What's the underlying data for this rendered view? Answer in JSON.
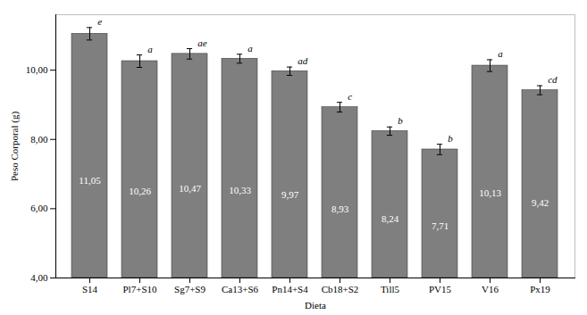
{
  "chart_data": {
    "type": "bar",
    "categories": [
      "S14",
      "Pl7+S10",
      "Sg7+S9",
      "Ca13+S6",
      "Pn14+S4",
      "Cb18+S2",
      "Till5",
      "PV15",
      "V16",
      "Px19"
    ],
    "values": [
      11.05,
      10.26,
      10.47,
      10.33,
      9.97,
      8.93,
      8.24,
      7.71,
      10.13,
      9.42
    ],
    "errors": [
      0.18,
      0.18,
      0.15,
      0.13,
      0.12,
      0.14,
      0.12,
      0.15,
      0.17,
      0.13
    ],
    "value_labels": [
      "11,05",
      "10,26",
      "10,47",
      "10,33",
      "9,97",
      "8,93",
      "8,24",
      "7,71",
      "10,13",
      "9,42"
    ],
    "data_labels": true,
    "annotations": [
      "e",
      "a",
      "ae",
      "a",
      "ad",
      "c",
      "b",
      "b",
      "a",
      "cd"
    ],
    "color": "#7f7f7f",
    "ylabel": "Peso Corporal (g)",
    "xlabel": "Dieta",
    "ylim": [
      4.0,
      11.6
    ],
    "yticks": [
      {
        "value": 4.0,
        "label": "4,00"
      },
      {
        "value": 6.0,
        "label": "6,00"
      },
      {
        "value": 8.0,
        "label": "8,00"
      },
      {
        "value": 10.0,
        "label": "10,00"
      }
    ],
    "grid": false
  }
}
